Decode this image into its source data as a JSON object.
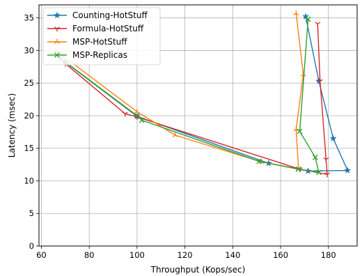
{
  "chart_data": {
    "type": "line",
    "xlabel": "Throughput (Kops/sec)",
    "ylabel": "Latency (msec)",
    "xlim": [
      59,
      192
    ],
    "ylim": [
      0,
      37
    ],
    "xticks": [
      60,
      80,
      100,
      120,
      140,
      160,
      180
    ],
    "yticks": [
      0,
      5,
      10,
      15,
      20,
      25,
      30,
      35
    ],
    "grid": true,
    "legend_position": "top-left",
    "series": [
      {
        "name": "Counting-HotStuff",
        "color": "#1f77b4",
        "marker": "star",
        "points": [
          [
            70,
            28.2
          ],
          [
            100,
            19.9
          ],
          [
            155,
            12.7
          ],
          [
            171.5,
            11.5
          ],
          [
            188,
            11.6
          ],
          [
            182,
            16.5
          ],
          [
            176,
            25.3
          ],
          [
            170.5,
            35.2
          ]
        ]
      },
      {
        "name": "Formula-HotStuff",
        "color": "#d62728",
        "marker": "tri_down",
        "points": [
          [
            70,
            28.0
          ],
          [
            95,
            20.3
          ],
          [
            100,
            19.8
          ],
          [
            168,
            11.8
          ],
          [
            179.5,
            11.0
          ],
          [
            179,
            13.3
          ],
          [
            176.5,
            25.3
          ],
          [
            175.5,
            34.1
          ]
        ]
      },
      {
        "name": "MSP-HotStuff",
        "color": "#ff7f0e",
        "marker": "tri_up",
        "points": [
          [
            66,
            30.0
          ],
          [
            100,
            20.6
          ],
          [
            116,
            17.0
          ],
          [
            152,
            12.9
          ],
          [
            167.5,
            11.8
          ],
          [
            166.5,
            17.9
          ],
          [
            169.5,
            26.3
          ],
          [
            166.5,
            35.7
          ]
        ]
      },
      {
        "name": "MSP-Replicas",
        "color": "#2ca02c",
        "marker": "x",
        "points": [
          [
            68,
            28.8
          ],
          [
            100,
            20.0
          ],
          [
            102,
            19.3
          ],
          [
            151,
            13.0
          ],
          [
            167.5,
            11.8
          ],
          [
            176,
            11.3
          ],
          [
            174.5,
            13.6
          ],
          [
            168,
            17.6
          ],
          [
            171.5,
            34.8
          ]
        ]
      }
    ]
  }
}
